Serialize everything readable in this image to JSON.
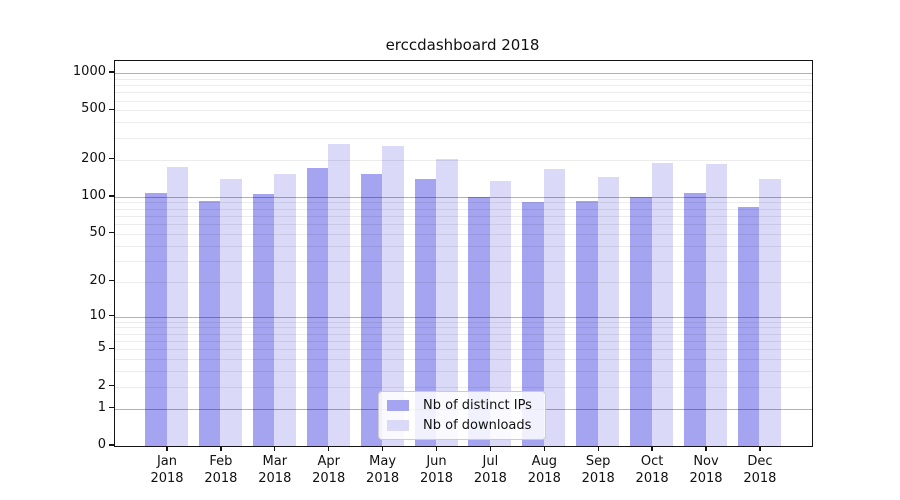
{
  "chart_data": {
    "type": "bar",
    "title": "erccdashboard 2018",
    "categories": [
      "Jan",
      "Feb",
      "Mar",
      "Apr",
      "May",
      "Jun",
      "Jul",
      "Aug",
      "Sep",
      "Oct",
      "Nov",
      "Dec"
    ],
    "year_label": "2018",
    "series": [
      {
        "name": "Nb of distinct IPs",
        "color": "#a4a4f0",
        "values": [
          107,
          93,
          106,
          172,
          154,
          140,
          100,
          91,
          93,
          99,
          108,
          82
        ]
      },
      {
        "name": "Nb of downloads",
        "color": "#dadaf8",
        "values": [
          175,
          140,
          152,
          266,
          260,
          202,
          134,
          168,
          145,
          187,
          186,
          140
        ]
      }
    ],
    "yticks": [
      0,
      1,
      2,
      5,
      10,
      20,
      50,
      100,
      200,
      500,
      1000
    ],
    "ylim": [
      0,
      1250
    ],
    "yscale": "log1p",
    "grid": true,
    "legend_position": "lower center",
    "colors": {
      "bar_dark": "#a4a4f0",
      "bar_light": "#dadaf8",
      "major_grid": "#b3b3b3",
      "minor_grid": "#ececec",
      "axis": "#141414",
      "background": "#ffffff"
    }
  }
}
